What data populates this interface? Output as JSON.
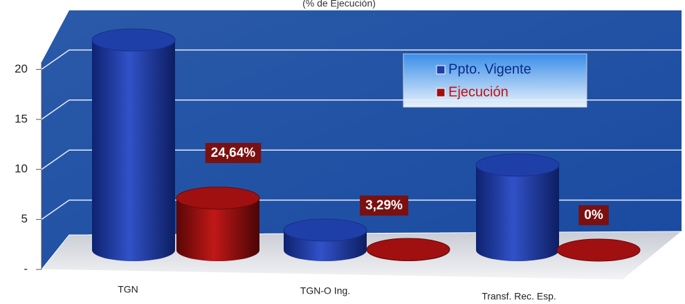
{
  "chart_data": {
    "type": "bar3d",
    "subtitle": "(% de Ejecución)",
    "categories": [
      "TGN",
      "TGN-O Ing.",
      "Transf. Rec. Esp."
    ],
    "series": [
      {
        "name": "Ppto. Vigente",
        "color": "#1f3fa8",
        "values": [
          21,
          2,
          8.5
        ]
      },
      {
        "name": "Ejecución",
        "color": "#a01010",
        "values": [
          5.2,
          0.066,
          0
        ],
        "value_labels": [
          "24,64%",
          "3,29%",
          "0%"
        ]
      }
    ],
    "ylim": [
      0,
      25
    ],
    "yticks": [
      {
        "value": 0,
        "label": "-"
      },
      5,
      10,
      15,
      20
    ],
    "grid": true,
    "legend": "top-right"
  }
}
